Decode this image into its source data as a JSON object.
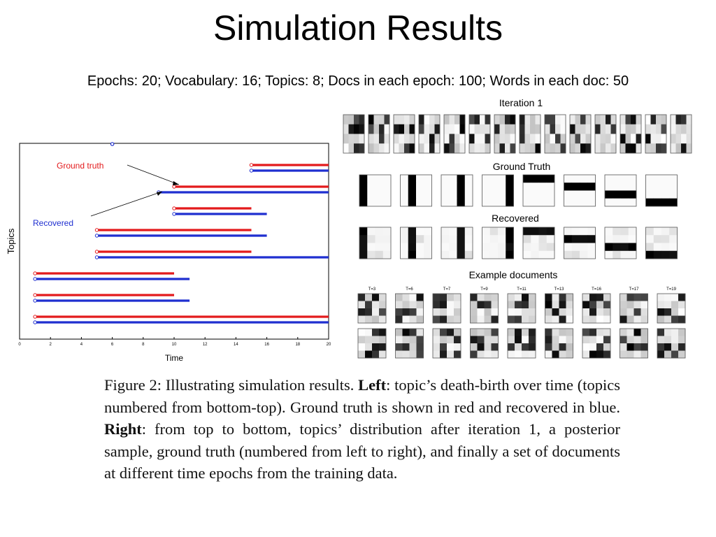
{
  "slide": {
    "title": "Simulation Results",
    "subtitle": "Epochs: 20; Vocabulary: 16; Topics: 8; Docs in each epoch: 100; Words in each doc: 50"
  },
  "chart_data": {
    "type": "line",
    "xlabel": "Time",
    "ylabel": "Topics",
    "xlim": [
      0,
      20
    ],
    "xticks": [
      "0",
      "2",
      "4",
      "6",
      "8",
      "10",
      "12",
      "14",
      "16",
      "18",
      "20"
    ],
    "annotations": [
      "Ground truth",
      "Recovered"
    ],
    "colors": {
      "ground_truth": "#e31a1c",
      "recovered": "#1f2fd0"
    },
    "series": [
      {
        "name": "Ground truth",
        "segments": [
          {
            "topic": 8,
            "start": 15,
            "end": 20
          },
          {
            "topic": 7,
            "start": 10,
            "end": 20
          },
          {
            "topic": 6,
            "start": 10,
            "end": 15
          },
          {
            "topic": 5,
            "start": 5,
            "end": 15
          },
          {
            "topic": 4,
            "start": 5,
            "end": 15
          },
          {
            "topic": 3,
            "start": 1,
            "end": 10
          },
          {
            "topic": 2,
            "start": 1,
            "end": 10
          },
          {
            "topic": 1,
            "start": 1,
            "end": 20
          }
        ]
      },
      {
        "name": "Recovered",
        "segments": [
          {
            "topic": 8,
            "start": 15,
            "end": 20
          },
          {
            "topic": 7,
            "start": 9,
            "end": 20
          },
          {
            "topic": 6,
            "start": 10,
            "end": 16
          },
          {
            "topic": 5,
            "start": 5,
            "end": 16
          },
          {
            "topic": 4,
            "start": 5,
            "end": 20
          },
          {
            "topic": 3,
            "start": 1,
            "end": 11
          },
          {
            "topic": 2,
            "start": 1,
            "end": 11
          },
          {
            "topic": 1,
            "start": 1,
            "end": 20
          }
        ]
      }
    ],
    "extra_point": {
      "x": 6,
      "topic": 9
    }
  },
  "right_panel": {
    "sections": [
      "Iteration 1",
      "Ground Truth",
      "Recovered",
      "Example documents"
    ],
    "doc_time_labels": [
      "T=3",
      "T=6",
      "T=7",
      "T=9",
      "T=11",
      "T=13",
      "T=16",
      "T=17",
      "T=19"
    ]
  },
  "caption": {
    "figure_label": "Figure 2:",
    "intro": "Illustrating simulation results.",
    "left_label": "Left",
    "left_text": ": topic’s death-birth over time (topics numbered from bottom-top). Ground truth is shown in red and recovered in blue.",
    "right_label": "Right",
    "right_text": ": from top to bottom, topics’ distribution after iteration 1, a posterior sample, ground truth (numbered from left to right), and finally a set of documents at different time epochs from the training data."
  }
}
